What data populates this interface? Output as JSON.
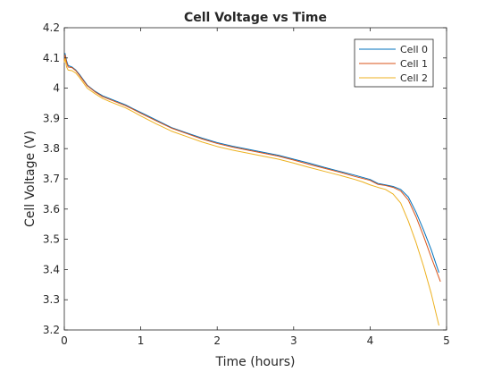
{
  "chart_data": {
    "type": "line",
    "title": "Cell Voltage vs Time",
    "xlabel": "Time (hours)",
    "ylabel": "Cell Voltage (V)",
    "xlim": [
      0,
      5
    ],
    "ylim": [
      3.2,
      4.2
    ],
    "xticks": [
      0,
      1,
      2,
      3,
      4,
      5
    ],
    "yticks": [
      3.2,
      3.3,
      3.4,
      3.5,
      3.6,
      3.7,
      3.8,
      3.9,
      4,
      4.1,
      4.2
    ],
    "xtick_labels": [
      "0",
      "1",
      "2",
      "3",
      "4",
      "5"
    ],
    "ytick_labels": [
      "3.2",
      "3.3",
      "3.4",
      "3.5",
      "3.6",
      "3.7",
      "3.8",
      "3.9",
      "4",
      "4.1",
      "4.2"
    ],
    "grid": false,
    "legend_position": "top-right",
    "series": [
      {
        "name": "Cell 0",
        "color": "#0072BD",
        "x": [
          0,
          0.01,
          0.03,
          0.05,
          0.1,
          0.15,
          0.2,
          0.3,
          0.4,
          0.5,
          0.6,
          0.7,
          0.8,
          0.9,
          1.0,
          1.2,
          1.4,
          1.6,
          1.8,
          2.0,
          2.2,
          2.4,
          2.6,
          2.8,
          3.0,
          3.2,
          3.4,
          3.6,
          3.8,
          4.0,
          4.1,
          4.2,
          4.3,
          4.4,
          4.5,
          4.6,
          4.7,
          4.8,
          4.9
        ],
        "values": [
          4.1,
          4.115,
          4.09,
          4.075,
          4.07,
          4.06,
          4.045,
          4.01,
          3.99,
          3.975,
          3.965,
          3.955,
          3.945,
          3.932,
          3.92,
          3.895,
          3.87,
          3.852,
          3.835,
          3.82,
          3.808,
          3.798,
          3.788,
          3.778,
          3.765,
          3.752,
          3.738,
          3.725,
          3.712,
          3.698,
          3.685,
          3.68,
          3.675,
          3.665,
          3.64,
          3.59,
          3.53,
          3.465,
          3.39
        ]
      },
      {
        "name": "Cell 1",
        "color": "#D95319",
        "x": [
          0,
          0.01,
          0.03,
          0.05,
          0.1,
          0.15,
          0.2,
          0.3,
          0.4,
          0.5,
          0.6,
          0.7,
          0.8,
          0.9,
          1.0,
          1.2,
          1.4,
          1.6,
          1.8,
          2.0,
          2.2,
          2.4,
          2.6,
          2.8,
          3.0,
          3.2,
          3.4,
          3.6,
          3.8,
          4.0,
          4.1,
          4.2,
          4.3,
          4.4,
          4.5,
          4.6,
          4.7,
          4.8,
          4.92
        ],
        "values": [
          4.09,
          4.11,
          4.085,
          4.07,
          4.068,
          4.058,
          4.042,
          4.008,
          3.988,
          3.972,
          3.962,
          3.952,
          3.942,
          3.93,
          3.917,
          3.892,
          3.868,
          3.85,
          3.832,
          3.817,
          3.805,
          3.795,
          3.785,
          3.775,
          3.762,
          3.748,
          3.735,
          3.722,
          3.708,
          3.695,
          3.682,
          3.678,
          3.672,
          3.66,
          3.63,
          3.575,
          3.51,
          3.44,
          3.36
        ]
      },
      {
        "name": "Cell 2",
        "color": "#EDB120",
        "x": [
          0,
          0.01,
          0.03,
          0.05,
          0.1,
          0.15,
          0.2,
          0.3,
          0.4,
          0.5,
          0.6,
          0.7,
          0.8,
          0.9,
          1.0,
          1.2,
          1.4,
          1.6,
          1.8,
          2.0,
          2.2,
          2.4,
          2.6,
          2.8,
          3.0,
          3.2,
          3.4,
          3.6,
          3.8,
          3.9,
          4.0,
          4.1,
          4.2,
          4.3,
          4.4,
          4.5,
          4.6,
          4.7,
          4.8,
          4.9
        ],
        "values": [
          4.085,
          4.1,
          4.07,
          4.06,
          4.058,
          4.05,
          4.035,
          4.0,
          3.982,
          3.966,
          3.955,
          3.945,
          3.935,
          3.922,
          3.908,
          3.882,
          3.858,
          3.84,
          3.822,
          3.807,
          3.795,
          3.785,
          3.775,
          3.765,
          3.752,
          3.738,
          3.725,
          3.712,
          3.698,
          3.69,
          3.68,
          3.672,
          3.665,
          3.65,
          3.62,
          3.56,
          3.49,
          3.41,
          3.32,
          3.215
        ]
      }
    ]
  }
}
